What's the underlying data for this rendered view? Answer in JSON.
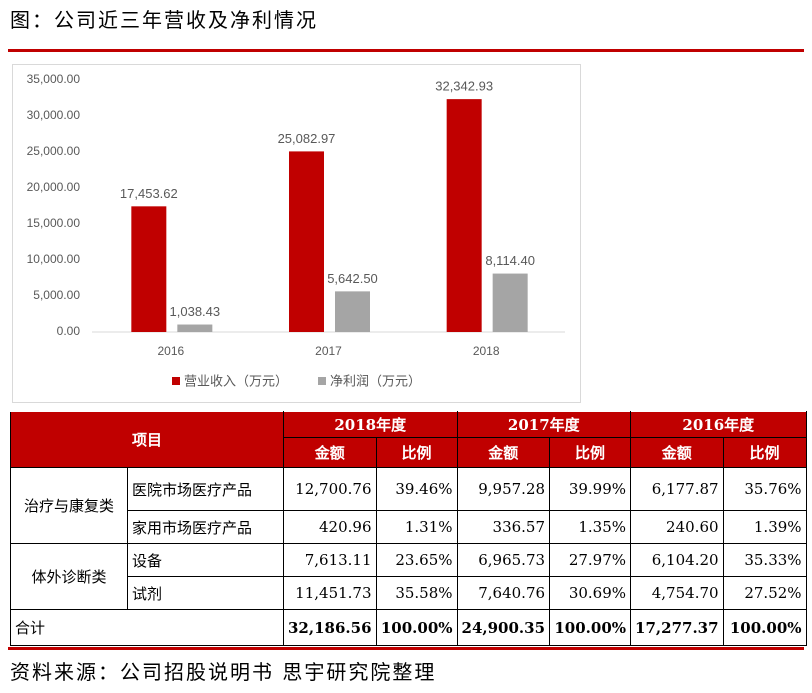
{
  "title": "图：公司近三年营收及净利情况",
  "chart_data": {
    "type": "bar",
    "categories": [
      "2016",
      "2017",
      "2018"
    ],
    "series": [
      {
        "name": "营业收入（万元）",
        "color": "#c00000",
        "values": [
          17453.62,
          25082.97,
          32342.93
        ],
        "value_labels": [
          "17,453.62",
          "25,082.97",
          "32,342.93"
        ]
      },
      {
        "name": "净利润（万元）",
        "color": "#a5a5a5",
        "values": [
          1038.43,
          5642.5,
          8114.4
        ],
        "value_labels": [
          "1,038.43",
          "5,642.50",
          "8,114.40"
        ]
      }
    ],
    "ylim": [
      0,
      35000
    ],
    "yticks": [
      {
        "value": 0,
        "label": "0.00"
      },
      {
        "value": 5000,
        "label": "5,000.00"
      },
      {
        "value": 10000,
        "label": "10,000.00"
      },
      {
        "value": 15000,
        "label": "15,000.00"
      },
      {
        "value": 20000,
        "label": "20,000.00"
      },
      {
        "value": 25000,
        "label": "25,000.00"
      },
      {
        "value": 30000,
        "label": "30,000.00"
      },
      {
        "value": 35000,
        "label": "35,000.00"
      }
    ],
    "grid": false,
    "legend": "bottom"
  },
  "table": {
    "item": "项目",
    "years": [
      "2018年度",
      "2017年度",
      "2016年度"
    ],
    "columns": [
      "金额",
      "比例",
      "金额",
      "比例",
      "金额",
      "比例"
    ],
    "groups": [
      {
        "name": "治疗与康复类",
        "rows": [
          {
            "name": "医院市场医疗产品",
            "cells": [
              "12,700.76",
              "39.46%",
              "9,957.28",
              "39.99%",
              "6,177.87",
              "35.76%"
            ]
          },
          {
            "name": "家用市场医疗产品",
            "cells": [
              "420.96",
              "1.31%",
              "336.57",
              "1.35%",
              "240.60",
              "1.39%"
            ]
          }
        ]
      },
      {
        "name": "体外诊断类",
        "rows": [
          {
            "name": "设备",
            "cells": [
              "7,613.11",
              "23.65%",
              "6,965.73",
              "27.97%",
              "6,104.20",
              "35.33%"
            ]
          },
          {
            "name": "试剂",
            "cells": [
              "11,451.73",
              "35.58%",
              "7,640.76",
              "30.69%",
              "4,754.70",
              "27.52%"
            ]
          }
        ]
      }
    ],
    "total": {
      "name": "合计",
      "cells": [
        "32,186.56",
        "100.00%",
        "24,900.35",
        "100.00%",
        "17,277.37",
        "100.00%"
      ]
    }
  },
  "source": "资料来源：公司招股说明书 思宇研究院整理"
}
